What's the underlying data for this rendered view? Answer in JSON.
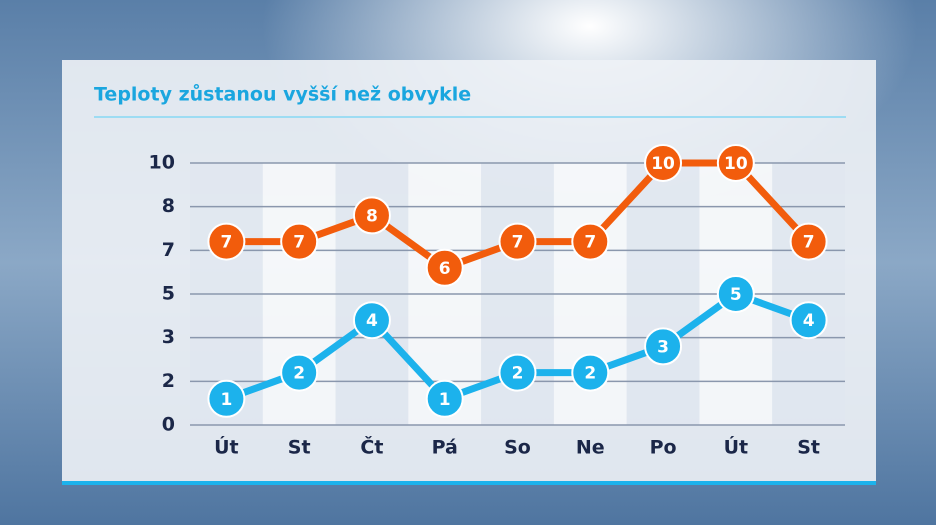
{
  "chart_data": {
    "type": "line",
    "title": "Teploty zůstanou vyšší než obvykle",
    "categories": [
      "Út",
      "St",
      "Čt",
      "Pá",
      "So",
      "Ne",
      "Po",
      "Út",
      "St"
    ],
    "series": [
      {
        "color": "#f25c0c",
        "values": [
          7,
          7,
          8,
          6,
          7,
          7,
          10,
          10,
          7
        ]
      },
      {
        "color": "#1cb2ec",
        "values": [
          1,
          2,
          4,
          1,
          2,
          2,
          3,
          5,
          4
        ]
      }
    ],
    "ylim": [
      0,
      10
    ],
    "yticks": [
      0,
      {
        "value": 1.667,
        "label": "2"
      },
      {
        "value": 3.333,
        "label": "3"
      },
      5,
      {
        "value": 6.667,
        "label": "7"
      },
      {
        "value": 8.333,
        "label": "8"
      },
      10
    ],
    "grid": true
  }
}
